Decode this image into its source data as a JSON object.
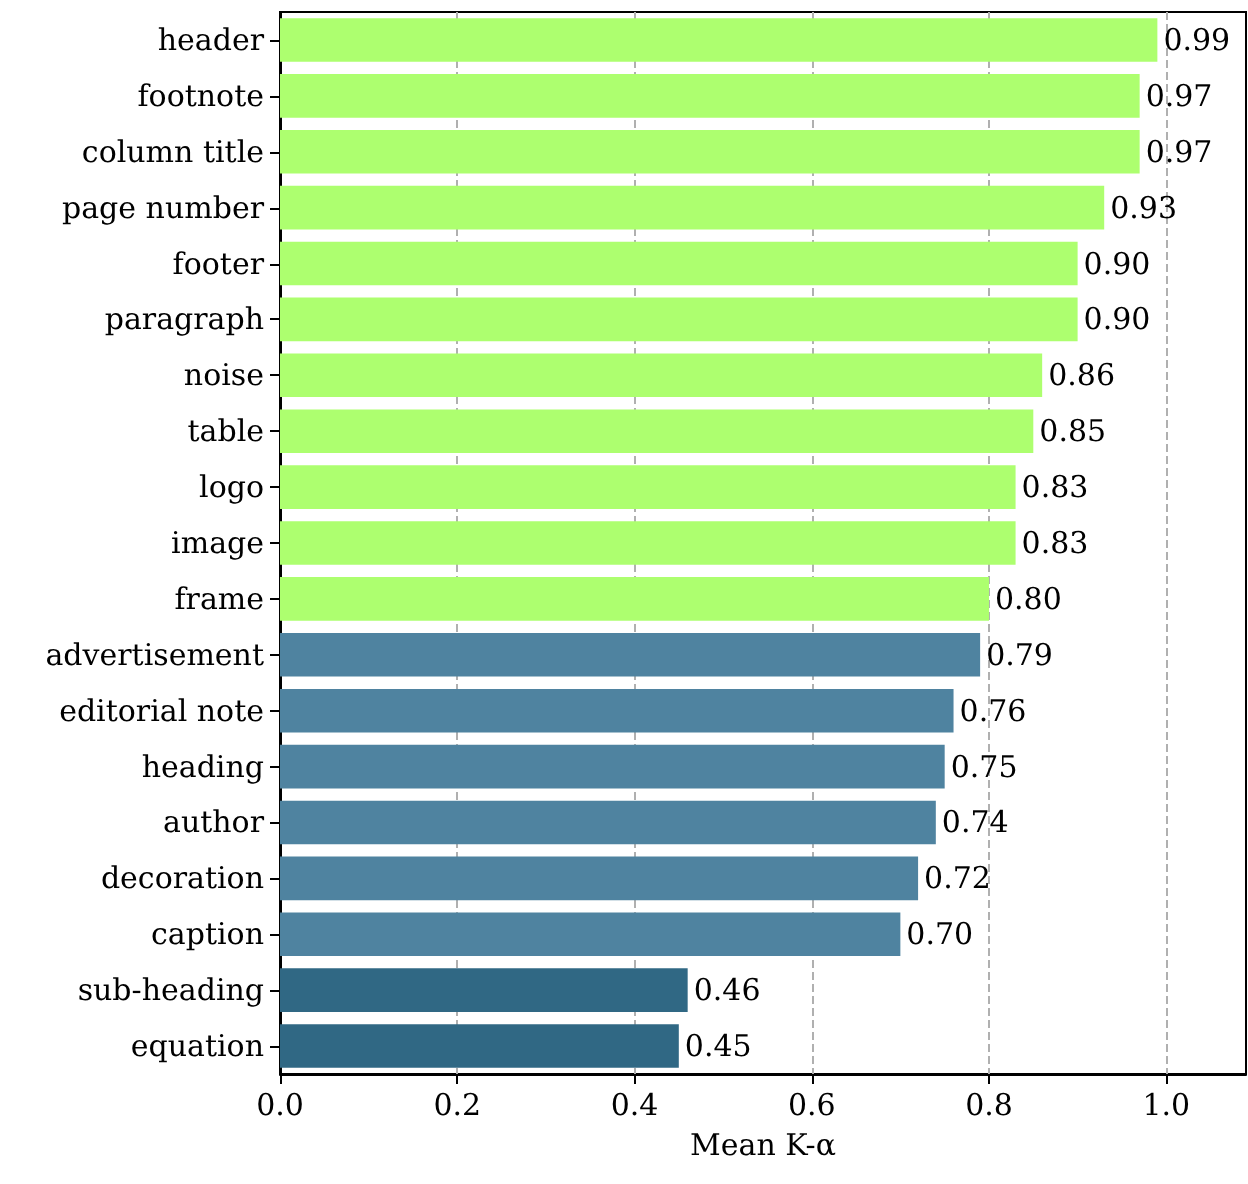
{
  "chart_data": {
    "type": "bar",
    "orientation": "horizontal",
    "xlabel": "Mean K-α",
    "categories": [
      "header",
      "footnote",
      "column title",
      "page number",
      "footer",
      "paragraph",
      "noise",
      "table",
      "logo",
      "image",
      "frame",
      "advertisement",
      "editorial note",
      "heading",
      "author",
      "decoration",
      "caption",
      "sub-heading",
      "equation"
    ],
    "values": [
      0.99,
      0.97,
      0.97,
      0.93,
      0.9,
      0.9,
      0.86,
      0.85,
      0.83,
      0.83,
      0.8,
      0.79,
      0.76,
      0.75,
      0.74,
      0.72,
      0.7,
      0.46,
      0.45
    ],
    "value_labels": [
      "0.99",
      "0.97",
      "0.97",
      "0.93",
      "0.90",
      "0.90",
      "0.86",
      "0.85",
      "0.83",
      "0.83",
      "0.80",
      "0.79",
      "0.76",
      "0.75",
      "0.74",
      "0.72",
      "0.70",
      "0.46",
      "0.45"
    ],
    "colors": [
      "#adff6f",
      "#adff6f",
      "#adff6f",
      "#adff6f",
      "#adff6f",
      "#adff6f",
      "#adff6f",
      "#adff6f",
      "#adff6f",
      "#adff6f",
      "#adff6f",
      "#4f83a0",
      "#4f83a0",
      "#4f83a0",
      "#4f83a0",
      "#4f83a0",
      "#4f83a0",
      "#306884",
      "#306884"
    ],
    "xlim": [
      0,
      1.09
    ],
    "xticks": [
      {
        "value": 0,
        "label": "0.0"
      },
      {
        "value": 0.2,
        "label": "0.2"
      },
      {
        "value": 0.4,
        "label": "0.4"
      },
      {
        "value": 0.6,
        "label": "0.6"
      },
      {
        "value": 0.8,
        "label": "0.8"
      },
      {
        "value": 1,
        "label": "1.0"
      }
    ],
    "grid": "x"
  }
}
